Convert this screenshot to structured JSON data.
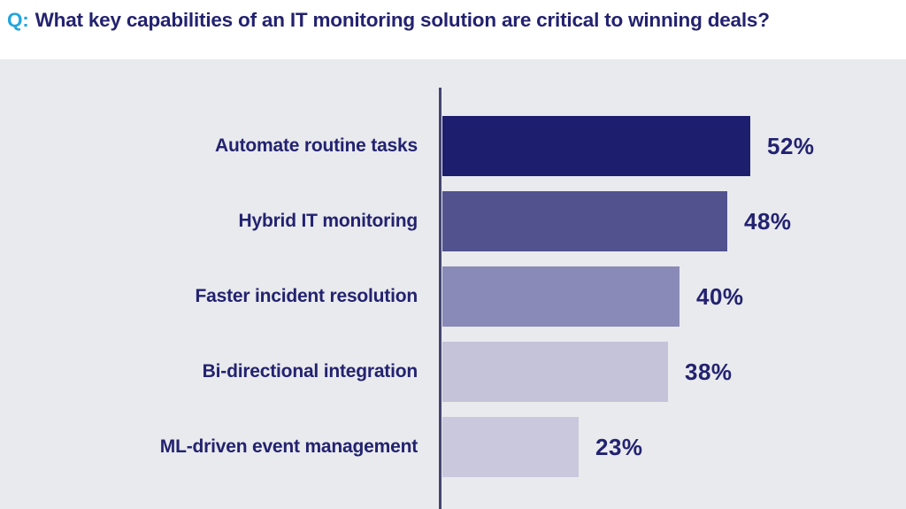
{
  "title": {
    "prefix": "Q:",
    "text": "What key capabilities of an IT monitoring solution are critical to winning deals?"
  },
  "chart_data": {
    "type": "bar",
    "orientation": "horizontal",
    "title": "Q: What key capabilities of an IT monitoring solution are critical to winning deals?",
    "categories": [
      "Automate routine tasks",
      "Hybrid IT monitoring",
      "Faster incident resolution",
      "Bi-directional integration",
      "ML-driven event management"
    ],
    "values": [
      52,
      48,
      40,
      38,
      23
    ],
    "value_labels": [
      "52%",
      "48%",
      "40%",
      "38%",
      "23%"
    ],
    "bar_colors": [
      "#1e1e6e",
      "#52528f",
      "#8a8ab8",
      "#c4c3d9",
      "#c9c8dc"
    ],
    "xlabel": "",
    "ylabel": "",
    "xlim": [
      0,
      60
    ],
    "grid": false,
    "legend": false,
    "value_label_position": "right-of-bar"
  },
  "colors": {
    "accent_cyan": "#25a5dc",
    "text_navy": "#232270",
    "chart_background": "#e8eaed",
    "header_background": "#ffffff",
    "axis_line": "#45456f"
  }
}
